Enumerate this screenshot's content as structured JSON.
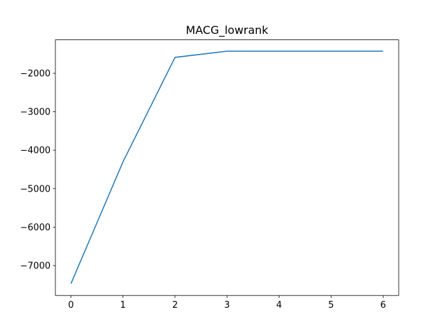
{
  "chart_data": {
    "type": "line",
    "title": "MACG_lowrank",
    "x": [
      0,
      1,
      2,
      3,
      4,
      5,
      6
    ],
    "series": [
      {
        "color": "#1f77b4",
        "values": [
          -7468,
          -4302,
          -1586,
          -1424,
          -1424,
          -1424,
          -1424
        ]
      }
    ],
    "xlim": [
      -0.3,
      6.3
    ],
    "xticks": [
      0,
      1,
      2,
      3,
      4,
      5,
      6
    ],
    "ylim": [
      -7777,
      -1130
    ],
    "yticks": [
      {
        "value": -7000,
        "label": "−7000"
      },
      {
        "value": -6000,
        "label": "−6000"
      },
      {
        "value": -5000,
        "label": "−5000"
      },
      {
        "value": -4000,
        "label": "−4000"
      },
      {
        "value": -3000,
        "label": "−3000"
      },
      {
        "value": -2000,
        "label": "−2000"
      }
    ],
    "grid": false
  }
}
